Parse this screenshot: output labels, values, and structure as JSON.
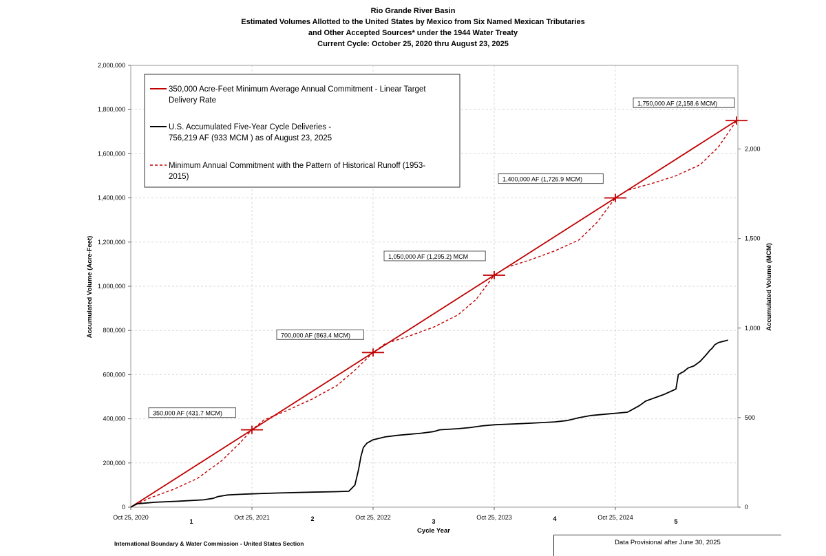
{
  "chart_data": {
    "type": "line",
    "title_lines": [
      "Rio Grande River Basin",
      "Estimated Volumes Allotted to the United States by Mexico from Six Named Mexican Tributaries",
      "and Other Accepted Sources* under the 1944 Water Treaty",
      "Current Cycle: October 25, 2020 thru August 23, 2025"
    ],
    "xlabel": "Cycle Year",
    "ylabel": "Accumulated Volume (Acre-Feet)",
    "y2label": "Accumulated Volume (MCM)",
    "xlim": [
      0,
      5
    ],
    "ylim": [
      0,
      2000000
    ],
    "y_ticks": [
      0,
      200000,
      400000,
      600000,
      800000,
      1000000,
      1200000,
      1400000,
      1600000,
      1800000,
      2000000
    ],
    "y_tick_labels": [
      "0",
      "200,000",
      "400,000",
      "600,000",
      "800,000",
      "1,000,000",
      "1,200,000",
      "1,400,000",
      "1,600,000",
      "1,800,000",
      "2,000,000"
    ],
    "y2_ticks_af": [
      0,
      405357,
      810714,
      1216071,
      1621428
    ],
    "y2_tick_labels": [
      "0",
      "500",
      "1,000",
      "1,500",
      "2,000"
    ],
    "x_ticks": [
      0,
      1,
      2,
      3,
      4
    ],
    "x_tick_labels": [
      "Oct 25, 2020",
      "Oct 25, 2021",
      "Oct 25, 2022",
      "Oct 25, 2023",
      "Oct 25, 2024"
    ],
    "cycle_numbers": [
      "1",
      "2",
      "3",
      "4",
      "5"
    ],
    "grid": true,
    "legend_position": "top-left",
    "legend": [
      {
        "lines": [
          "350,000 Acre-Feet Minimum Average Annual Commitment - Linear Target",
          "Delivery Rate"
        ],
        "style": "solid",
        "color": "#c00000"
      },
      {
        "lines": [
          "U.S. Accumulated Five-Year Cycle Deliveries -",
          "756,219 AF (933 MCM ) as of August 23, 2025"
        ],
        "style": "solid",
        "color": "#000000"
      },
      {
        "lines": [
          "Minimum Annual Commitment with the Pattern of Historical Runoff (1953-",
          "2015)"
        ],
        "style": "dashed",
        "color": "#c00000"
      }
    ],
    "milestones": [
      {
        "x": 1,
        "y": 350000,
        "label": "350,000 AF (431.7 MCM)"
      },
      {
        "x": 2,
        "y": 700000,
        "label": "700,000 AF (863.4 MCM)"
      },
      {
        "x": 3,
        "y": 1050000,
        "label": "1,050,000 AF (1,295.2) MCM"
      },
      {
        "x": 4,
        "y": 1400000,
        "label": "1,400,000  AF (1,726.9 MCM)"
      },
      {
        "x": 5,
        "y": 1750000,
        "label": "1,750,000 AF (2,158.6 MCM)"
      }
    ],
    "series": [
      {
        "name": "350,000 Acre-Feet Minimum Average Annual Commitment - Linear Target Delivery Rate",
        "color": "#c00000",
        "style": "solid",
        "x": [
          0,
          5
        ],
        "y": [
          0,
          1750000
        ]
      },
      {
        "name": "Minimum Annual Commitment with the Pattern of Historical Runoff (1953-2015)",
        "color": "#c00000",
        "style": "dashed",
        "x": [
          0,
          0.15,
          0.35,
          0.55,
          0.75,
          0.9,
          1.0,
          1.1,
          1.3,
          1.5,
          1.7,
          1.85,
          2.0,
          2.1,
          2.3,
          2.5,
          2.7,
          2.85,
          3.0,
          3.1,
          3.3,
          3.5,
          3.7,
          3.85,
          4.0,
          4.1,
          4.3,
          4.5,
          4.7,
          4.85,
          5.0
        ],
        "y": [
          0,
          40000,
          80000,
          130000,
          210000,
          290000,
          350000,
          395000,
          440000,
          490000,
          550000,
          620000,
          700000,
          740000,
          775000,
          815000,
          870000,
          940000,
          1050000,
          1085000,
          1120000,
          1160000,
          1210000,
          1290000,
          1400000,
          1435000,
          1465000,
          1500000,
          1550000,
          1630000,
          1750000
        ]
      },
      {
        "name": "U.S. Accumulated Five-Year Cycle Deliveries - 756,219 AF (933 MCM ) as of August 23, 2025",
        "color": "#000000",
        "style": "solid",
        "x": [
          0,
          0.05,
          0.2,
          0.4,
          0.6,
          0.68,
          0.72,
          0.8,
          0.9,
          1.0,
          1.2,
          1.5,
          1.7,
          1.8,
          1.85,
          1.88,
          1.9,
          1.92,
          1.95,
          2.0,
          2.1,
          2.2,
          2.4,
          2.5,
          2.55,
          2.7,
          2.8,
          2.9,
          3.0,
          3.3,
          3.5,
          3.6,
          3.7,
          3.8,
          3.9,
          4.0,
          4.1,
          4.15,
          4.2,
          4.25,
          4.3,
          4.35,
          4.4,
          4.48,
          4.5,
          4.52,
          4.55,
          4.56,
          4.6,
          4.65,
          4.7,
          4.75,
          4.78,
          4.8,
          4.82,
          4.85,
          4.9,
          4.93
        ],
        "y": [
          0,
          15000,
          22000,
          27000,
          33000,
          40000,
          48000,
          55000,
          58000,
          60000,
          64000,
          68000,
          70000,
          72000,
          100000,
          170000,
          230000,
          270000,
          290000,
          305000,
          318000,
          325000,
          335000,
          342000,
          350000,
          355000,
          360000,
          368000,
          373000,
          380000,
          386000,
          392000,
          405000,
          415000,
          420000,
          425000,
          430000,
          445000,
          460000,
          480000,
          490000,
          500000,
          510000,
          530000,
          535000,
          600000,
          610000,
          612000,
          630000,
          640000,
          660000,
          690000,
          710000,
          720000,
          735000,
          745000,
          752000,
          756219
        ]
      }
    ]
  },
  "footer": {
    "left": "International Boundary & Water Commission - United States Section",
    "right": "Data Provisional after June 30, 2025"
  }
}
